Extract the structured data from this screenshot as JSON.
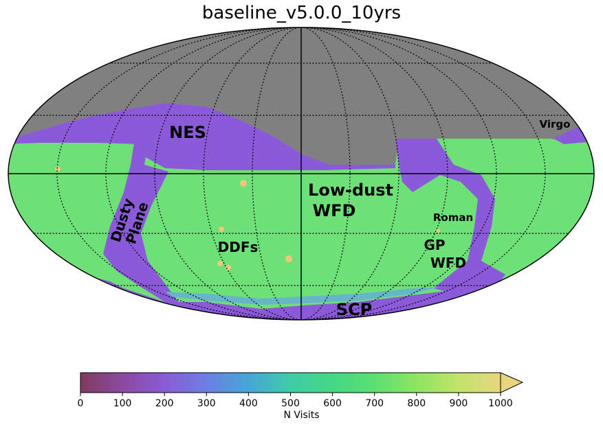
{
  "title": "baseline_v5.0.0_10yrs",
  "regions": [
    {
      "id": "nes",
      "label": "NES"
    },
    {
      "id": "virgo",
      "label": "Virgo"
    },
    {
      "id": "low-dust-wfd",
      "lines": [
        "Low-dust",
        "WFD"
      ]
    },
    {
      "id": "dusty-plane",
      "lines": [
        "Dusty",
        "Plane"
      ]
    },
    {
      "id": "roman",
      "label": "Roman"
    },
    {
      "id": "ddfs",
      "label": "DDFs"
    },
    {
      "id": "gp-wfd",
      "lines": [
        "GP",
        "WFD"
      ]
    },
    {
      "id": "scp",
      "label": "SCP"
    }
  ],
  "colorbar": {
    "label": "N Visits",
    "min": 0,
    "max": 1000,
    "ticks": [
      "0",
      "100",
      "200",
      "300",
      "400",
      "500",
      "600",
      "700",
      "800",
      "900",
      "1000"
    ],
    "extend": "max",
    "colors": [
      "#7f3a5c",
      "#8b4aa0",
      "#8a5bd6",
      "#6b7fe0",
      "#46a6d6",
      "#3fcca8",
      "#45d884",
      "#5bdf73",
      "#8ee561",
      "#c2e36a",
      "#e7d67f"
    ]
  },
  "fill_colors": {
    "masked": "#808080",
    "low_visits": "#8a5ad8",
    "mid_visits": "#67b6c8",
    "high_visits": "#6ee078",
    "ddf": "#f0c878"
  }
}
